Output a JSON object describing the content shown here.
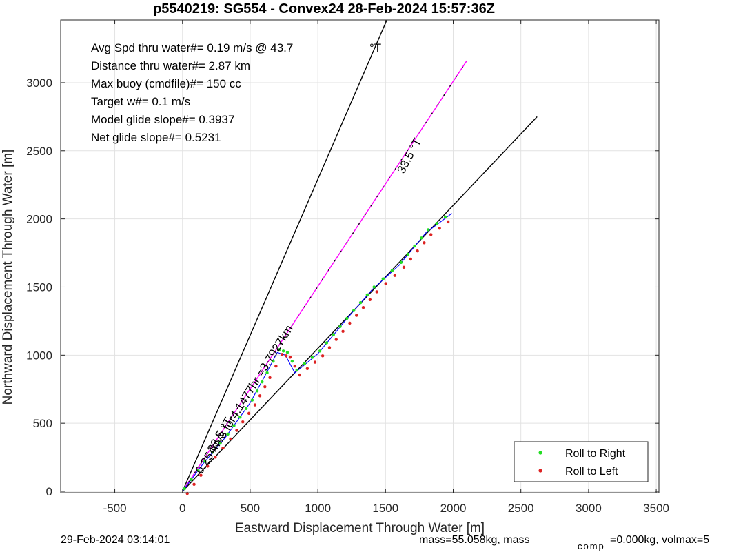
{
  "chart_data": {
    "type": "line",
    "title": "p5540219: SG554 - Convex24 28-Feb-2024 15:57:36Z",
    "xlabel": "Eastward Displacement Through Water [m]",
    "ylabel": "Northward Displacement Through Water [m]",
    "xlim": [
      -900,
      3520
    ],
    "ylim": [
      -10,
      3460
    ],
    "xticks": [
      -500,
      0,
      500,
      1000,
      1500,
      2000,
      2500,
      3000,
      3500
    ],
    "yticks": [
      0,
      500,
      1000,
      1500,
      2000,
      2500,
      3000
    ],
    "grid": true,
    "annotations": [
      "Avg Spd thru water#=  0.19 m/s @  43.7",
      "Distance thru water#=  2.87 km",
      "Max buoy (cmdfile)#= 150 cc",
      "Target w#= 0.1 m/s",
      "Model glide slope#= 0.3937",
      "Net glide slope#= 0.5231"
    ],
    "annotation_degT": "°T",
    "lines": [
      {
        "color": "#000000",
        "x": [
          0,
          1510
        ],
        "y": [
          0,
          3460
        ]
      },
      {
        "color": "#ff00ff",
        "x": [
          0,
          2100
        ],
        "y": [
          0,
          3160
        ]
      },
      {
        "color": "#000000",
        "x": [
          0,
          2620
        ],
        "y": [
          0,
          2750
        ]
      }
    ],
    "rotated_labels": [
      {
        "text": "33.5 °T",
        "x": 1700,
        "y": 2450,
        "angle": -62
      },
      {
        "text": "0.254m/s for4.1477hr =3.7927km",
        "x": 480,
        "y": 660,
        "angle": -58
      },
      {
        "text": "33.5 °T",
        "x": 300,
        "y": 400,
        "angle": -60
      }
    ],
    "track_waypoints": {
      "x": [
        0,
        150,
        320,
        500,
        610,
        700,
        760,
        830,
        1000,
        1200,
        1400,
        1600,
        1800,
        1990
      ],
      "y": [
        0,
        200,
        400,
        650,
        850,
        1020,
        1000,
        870,
        1010,
        1250,
        1480,
        1660,
        1900,
        2040
      ]
    },
    "legend": {
      "position": "bottom-right",
      "entries": [
        {
          "label": "Roll to Right",
          "color": "#22dd22"
        },
        {
          "label": "Roll to Left",
          "color": "#dd2222"
        }
      ]
    },
    "footer_left": "29-Feb-2024 03:14:01",
    "footer_right_1": "mass=55.058kg, mass",
    "footer_right_sub": "comp",
    "footer_right_2": "=0.000kg, volmax=5"
  }
}
